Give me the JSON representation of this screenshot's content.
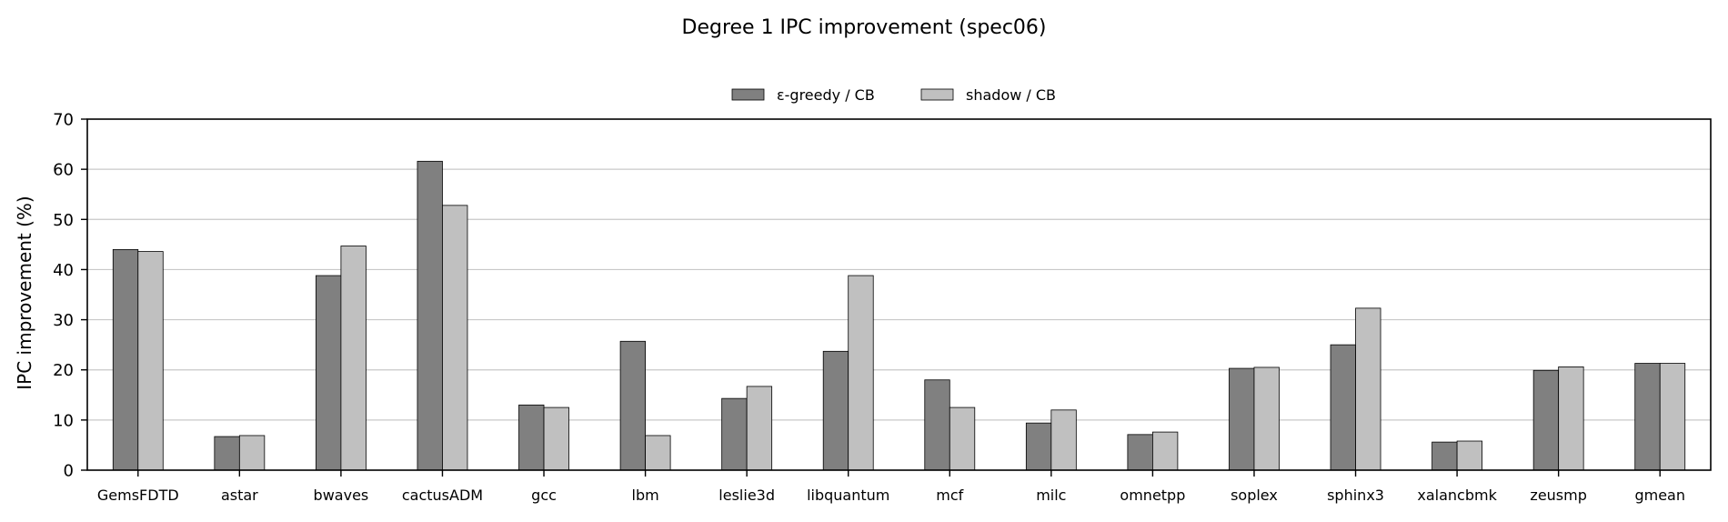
{
  "chart_data": {
    "type": "bar",
    "title": "Degree 1 IPC improvement (spec06)",
    "xlabel": "",
    "ylabel": "IPC improvement (%)",
    "ylim": [
      0,
      70
    ],
    "yticks": [
      0,
      10,
      20,
      30,
      40,
      50,
      60,
      70
    ],
    "grid": "horizontal",
    "legend_position": "top-center",
    "categories": [
      "GemsFDTD",
      "astar",
      "bwaves",
      "cactusADM",
      "gcc",
      "lbm",
      "leslie3d",
      "libquantum",
      "mcf",
      "milc",
      "omnetpp",
      "soplex",
      "sphinx3",
      "xalancbmk",
      "zeusmp",
      "gmean"
    ],
    "series": [
      {
        "name": "ε-greedy / CB",
        "color": "#808080",
        "values": [
          44.0,
          6.7,
          38.8,
          61.6,
          13.0,
          25.7,
          14.3,
          23.7,
          18.0,
          9.4,
          7.1,
          20.3,
          25.0,
          5.6,
          19.9,
          21.3
        ]
      },
      {
        "name": "shadow / CB",
        "color": "#c0c0c0",
        "values": [
          43.6,
          6.9,
          44.7,
          52.8,
          12.5,
          6.9,
          16.7,
          38.8,
          12.5,
          12.0,
          7.6,
          20.5,
          32.3,
          5.8,
          20.6,
          21.3
        ]
      }
    ]
  }
}
